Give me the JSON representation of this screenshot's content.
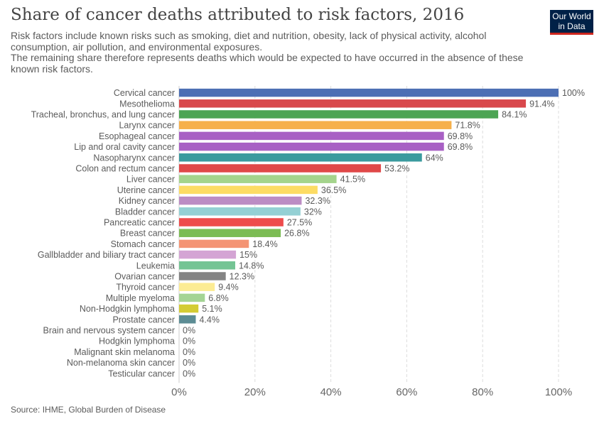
{
  "header": {
    "title": "Share of cancer deaths attributed to risk factors, 2016",
    "subtitle_line1": "Risk factors include known risks such as smoking, diet and nutrition, obesity, lack of physical activity, alcohol consumption, air pollution, and environmental exposures.",
    "subtitle_line2": "The remaining share therefore represents deaths which would be expected to have occurred in the absence of these known risk factors."
  },
  "logo": {
    "line1": "Our World",
    "line2": "in Data",
    "bg_color": "#002147",
    "accent_color": "#ce261e"
  },
  "footer": {
    "source": "Source: IHME, Global Burden of Disease"
  },
  "chart_data": {
    "type": "bar",
    "orientation": "horizontal",
    "title": "Share of cancer deaths attributed to risk factors, 2016",
    "xlim": [
      0,
      100
    ],
    "x_ticks": [
      0,
      20,
      40,
      60,
      80,
      100
    ],
    "tick_suffix": "%",
    "grid": "vertical dashed",
    "categories": [
      "Cervical cancer",
      "Mesothelioma",
      "Tracheal, bronchus, and lung cancer",
      "Larynx cancer",
      "Esophageal cancer",
      "Lip and oral cavity cancer",
      "Nasopharynx cancer",
      "Colon and rectum cancer",
      "Liver cancer",
      "Uterine cancer",
      "Kidney cancer",
      "Bladder cancer",
      "Pancreatic cancer",
      "Breast cancer",
      "Stomach cancer",
      "Gallbladder and biliary tract cancer",
      "Leukemia",
      "Ovarian cancer",
      "Thyroid cancer",
      "Multiple myeloma",
      "Non-Hodgkin lymphoma",
      "Prostate cancer",
      "Brain and nervous system cancer",
      "Hodgkin lymphoma",
      "Malignant skin melanoma",
      "Non-melanoma skin cancer",
      "Testicular cancer"
    ],
    "values": [
      100,
      91.4,
      84.1,
      71.8,
      69.8,
      69.8,
      64,
      53.2,
      41.5,
      36.5,
      32.3,
      32,
      27.5,
      26.8,
      18.4,
      15,
      14.8,
      12.3,
      9.4,
      6.8,
      5.1,
      4.4,
      0,
      0,
      0,
      0,
      0
    ],
    "value_labels": [
      "100%",
      "91.4%",
      "84.1%",
      "71.8%",
      "69.8%",
      "69.8%",
      "64%",
      "53.2%",
      "41.5%",
      "36.5%",
      "32.3%",
      "32%",
      "27.5%",
      "26.8%",
      "18.4%",
      "15%",
      "14.8%",
      "12.3%",
      "9.4%",
      "6.8%",
      "5.1%",
      "4.4%",
      "0%",
      "0%",
      "0%",
      "0%",
      "0%"
    ],
    "colors": [
      "#4c6fb4",
      "#d9484c",
      "#4ca454",
      "#f6b04b",
      "#a860c4",
      "#a860c4",
      "#3a9a9e",
      "#e04848",
      "#a4d48c",
      "#fddc64",
      "#bc8cc4",
      "#94d0d4",
      "#ee4c4c",
      "#7cbc54",
      "#f49474",
      "#d4a4d4",
      "#74c494",
      "#848484",
      "#fcec94",
      "#a4d494",
      "#d4cc34",
      "#5c8c94",
      "#888888",
      "#888888",
      "#888888",
      "#888888",
      "#888888"
    ]
  }
}
